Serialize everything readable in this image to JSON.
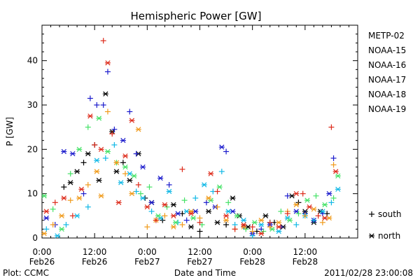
{
  "chart_data": {
    "type": "scatter",
    "title": "Hemispheric Power [GW]",
    "xlabel": "Date and Time",
    "ylabel": "P [GW]",
    "ylim": [
      0,
      48
    ],
    "xlim_hours": [
      0,
      72
    ],
    "yticks": [
      0,
      10,
      20,
      30,
      40
    ],
    "xticks": [
      {
        "hour": 0,
        "time": "0:00",
        "date": "Feb26"
      },
      {
        "hour": 12,
        "time": "12:00",
        "date": "Feb26"
      },
      {
        "hour": 24,
        "time": "0:00",
        "date": "Feb27"
      },
      {
        "hour": 36,
        "time": "12:00",
        "date": "Feb27"
      },
      {
        "hour": 48,
        "time": "0:00",
        "date": "Feb28"
      },
      {
        "hour": 60,
        "time": "12:00",
        "date": "Feb28"
      }
    ],
    "marker_legend": [
      {
        "symbol": "+",
        "label": "south"
      },
      {
        "symbol": "*",
        "label": "north"
      }
    ],
    "footer_left": "Plot: CCMC",
    "footer_right": "2011/02/28 23:00:08",
    "series": [
      {
        "name": "METP-02",
        "color": "#000000",
        "points": [
          [
            5,
            11.5,
            "+"
          ],
          [
            6.5,
            12.5,
            "*"
          ],
          [
            8,
            15,
            "*"
          ],
          [
            9.5,
            17,
            "+"
          ],
          [
            10.5,
            19,
            "*"
          ],
          [
            12,
            21,
            "+"
          ],
          [
            13,
            13,
            "*"
          ],
          [
            14.5,
            32.5,
            "*"
          ],
          [
            16,
            24,
            "*"
          ],
          [
            17,
            15,
            "*"
          ],
          [
            18.5,
            17,
            "+"
          ],
          [
            20,
            13,
            "*"
          ],
          [
            22,
            19,
            "*"
          ],
          [
            23.5,
            9,
            "+"
          ],
          [
            25,
            8,
            "*"
          ],
          [
            27.5,
            4,
            "+"
          ],
          [
            30,
            7.5,
            "*"
          ],
          [
            32,
            5.5,
            "+"
          ],
          [
            34,
            2.5,
            "*"
          ],
          [
            36,
            1.5,
            "+"
          ],
          [
            38,
            6,
            "*"
          ],
          [
            40,
            3.5,
            "*"
          ],
          [
            42,
            3,
            "+"
          ],
          [
            43.5,
            9,
            "*"
          ],
          [
            45,
            5,
            "*"
          ],
          [
            47,
            2.5,
            "*"
          ],
          [
            49,
            1.5,
            "+"
          ],
          [
            51,
            5,
            "*"
          ],
          [
            53,
            3.5,
            "+"
          ],
          [
            55,
            2.5,
            "*"
          ],
          [
            57,
            9.5,
            "*"
          ],
          [
            58.5,
            8,
            "+"
          ],
          [
            60,
            6,
            "*"
          ],
          [
            62,
            3.5,
            "*"
          ],
          [
            63.5,
            6,
            "*"
          ],
          [
            65,
            5.5,
            "+"
          ]
        ]
      },
      {
        "name": "NOAA-15",
        "color": "#1a1acc",
        "points": [
          [
            1,
            4.5,
            "*"
          ],
          [
            3,
            3,
            "+"
          ],
          [
            5,
            19.5,
            "*"
          ],
          [
            7,
            19,
            "*"
          ],
          [
            9.5,
            10,
            "+"
          ],
          [
            11,
            31.5,
            "+"
          ],
          [
            12.5,
            30,
            "+"
          ],
          [
            14,
            30,
            "+"
          ],
          [
            15,
            37.5,
            "+"
          ],
          [
            16.5,
            24.5,
            "+"
          ],
          [
            18.5,
            22,
            "*"
          ],
          [
            20,
            28.5,
            "+"
          ],
          [
            21.5,
            19,
            "+"
          ],
          [
            23,
            16,
            "*"
          ],
          [
            25,
            8,
            "*"
          ],
          [
            27,
            13.5,
            "*"
          ],
          [
            29,
            12,
            "+"
          ],
          [
            31,
            5.5,
            "*"
          ],
          [
            33,
            4,
            "+"
          ],
          [
            35,
            6,
            "*"
          ],
          [
            37.5,
            8,
            "+"
          ],
          [
            39.5,
            7,
            "*"
          ],
          [
            41,
            20.5,
            "*"
          ],
          [
            42,
            19.5,
            "+"
          ],
          [
            43.5,
            6,
            "*"
          ],
          [
            46,
            2.5,
            "+"
          ],
          [
            48,
            1,
            "*"
          ],
          [
            50,
            2,
            "+"
          ],
          [
            52,
            3,
            "*"
          ],
          [
            54.5,
            2.5,
            "+"
          ],
          [
            56,
            9.5,
            "+"
          ],
          [
            58,
            6,
            "*"
          ],
          [
            60,
            5.5,
            "+"
          ],
          [
            62,
            4,
            "*"
          ],
          [
            64,
            5.5,
            "+"
          ],
          [
            65.5,
            10,
            "*"
          ],
          [
            66.5,
            18,
            "+"
          ]
        ]
      },
      {
        "name": "NOAA-16",
        "color": "#10b8e6",
        "points": [
          [
            1,
            2,
            "+"
          ],
          [
            3.5,
            0.5,
            "*"
          ],
          [
            5.5,
            3,
            "+"
          ],
          [
            8,
            5,
            "*"
          ],
          [
            10.5,
            7,
            "+"
          ],
          [
            12.5,
            17.5,
            "*"
          ],
          [
            14.5,
            18,
            "+"
          ],
          [
            16.5,
            21,
            "+"
          ],
          [
            18,
            12.5,
            "*"
          ],
          [
            20,
            14.5,
            "*"
          ],
          [
            21.5,
            10.5,
            "+"
          ],
          [
            23,
            9,
            "*"
          ],
          [
            25,
            6,
            "+"
          ],
          [
            27,
            4.5,
            "*"
          ],
          [
            29,
            10.5,
            "*"
          ],
          [
            31,
            3.5,
            "+"
          ],
          [
            33,
            6,
            "*"
          ],
          [
            35,
            9,
            "+"
          ],
          [
            37,
            12,
            "*"
          ],
          [
            39,
            10.5,
            "+"
          ],
          [
            41,
            15,
            "+"
          ],
          [
            42.5,
            6,
            "*"
          ],
          [
            44,
            3,
            "+"
          ],
          [
            46,
            4,
            "*"
          ],
          [
            48,
            0.5,
            "+"
          ],
          [
            50,
            3,
            "*"
          ],
          [
            52,
            3.5,
            "+"
          ],
          [
            54,
            1.5,
            "*"
          ],
          [
            56,
            4.5,
            "*"
          ],
          [
            58,
            3,
            "+"
          ],
          [
            60,
            5,
            "*"
          ],
          [
            62,
            4,
            "+"
          ],
          [
            64,
            6,
            "*"
          ],
          [
            66,
            8,
            "+"
          ],
          [
            67.5,
            11,
            "*"
          ]
        ]
      },
      {
        "name": "NOAA-17",
        "color": "#44e266",
        "points": [
          [
            0.5,
            9.5,
            "*"
          ],
          [
            2.5,
            6.5,
            "+"
          ],
          [
            4.5,
            2,
            "*"
          ],
          [
            6.5,
            14.5,
            "+"
          ],
          [
            8.5,
            20,
            "*"
          ],
          [
            10.5,
            25,
            "+"
          ],
          [
            13,
            27,
            "*"
          ],
          [
            15,
            19.5,
            "*"
          ],
          [
            17,
            17,
            "+"
          ],
          [
            19,
            16,
            "*"
          ],
          [
            21,
            14,
            "*"
          ],
          [
            22.5,
            10,
            "+"
          ],
          [
            24.5,
            11.5,
            "+"
          ],
          [
            26.5,
            5,
            "*"
          ],
          [
            28.5,
            7,
            "+"
          ],
          [
            30.5,
            3.5,
            "*"
          ],
          [
            32.5,
            8.5,
            "+"
          ],
          [
            34.5,
            4.5,
            "*"
          ],
          [
            36.5,
            3,
            "+"
          ],
          [
            38.5,
            8.5,
            "*"
          ],
          [
            40.5,
            11.5,
            "*"
          ],
          [
            42.5,
            8,
            "+"
          ],
          [
            44.5,
            5,
            "*"
          ],
          [
            46.5,
            2,
            "+"
          ],
          [
            48.5,
            3.5,
            "*"
          ],
          [
            50.5,
            1.5,
            "+"
          ],
          [
            52.5,
            2,
            "*"
          ],
          [
            54.5,
            6,
            "+"
          ],
          [
            56.5,
            4,
            "*"
          ],
          [
            58.5,
            5.5,
            "+"
          ],
          [
            60.5,
            8.5,
            "*"
          ],
          [
            62.5,
            9.5,
            "+"
          ],
          [
            64.5,
            7.5,
            "*"
          ],
          [
            66.5,
            9,
            "+"
          ],
          [
            67.5,
            14,
            "*"
          ]
        ]
      },
      {
        "name": "NOAA-18",
        "color": "#f09a1a",
        "points": [
          [
            0.5,
            1,
            "*"
          ],
          [
            2.5,
            3,
            "+"
          ],
          [
            4.5,
            5,
            "*"
          ],
          [
            6.5,
            8.5,
            "+"
          ],
          [
            8.5,
            9,
            "*"
          ],
          [
            10.5,
            12,
            "+"
          ],
          [
            12.5,
            15,
            "*"
          ],
          [
            13.5,
            9.5,
            "*"
          ],
          [
            15,
            28.5,
            "+"
          ],
          [
            17,
            17,
            "*"
          ],
          [
            19,
            14.5,
            "+"
          ],
          [
            20.5,
            10,
            "*"
          ],
          [
            22,
            24.5,
            "*"
          ],
          [
            24,
            2.5,
            "+"
          ],
          [
            26,
            4,
            "*"
          ],
          [
            28,
            5,
            "+"
          ],
          [
            30,
            2.5,
            "*"
          ],
          [
            32,
            3,
            "+"
          ],
          [
            34,
            6,
            "*"
          ],
          [
            36,
            4.5,
            "+"
          ],
          [
            38,
            9,
            "*"
          ],
          [
            40,
            7,
            "+"
          ],
          [
            42,
            4,
            "*"
          ],
          [
            44,
            2,
            "+"
          ],
          [
            46,
            2.5,
            "*"
          ],
          [
            48,
            1.5,
            "+"
          ],
          [
            50,
            4,
            "*"
          ],
          [
            52,
            2.5,
            "+"
          ],
          [
            54,
            3.5,
            "*"
          ],
          [
            56,
            6,
            "+"
          ],
          [
            58,
            7.5,
            "*"
          ],
          [
            60,
            5,
            "+"
          ],
          [
            62,
            6.5,
            "*"
          ],
          [
            64,
            3.5,
            "+"
          ],
          [
            65.5,
            4.5,
            "*"
          ],
          [
            66.5,
            16.5,
            "+"
          ]
        ]
      },
      {
        "name": "NOAA-19",
        "color": "#dd2a1a",
        "points": [
          [
            1,
            6,
            "*"
          ],
          [
            3,
            8,
            "+"
          ],
          [
            5,
            9,
            "*"
          ],
          [
            7,
            5,
            "+"
          ],
          [
            9,
            11,
            "*"
          ],
          [
            11,
            27.5,
            "*"
          ],
          [
            12,
            21,
            "+"
          ],
          [
            13.5,
            20,
            "*"
          ],
          [
            14,
            44.5,
            "+"
          ],
          [
            15,
            39.5,
            "*"
          ],
          [
            16,
            23.5,
            "+"
          ],
          [
            17.5,
            8,
            "*"
          ],
          [
            19,
            18.5,
            "*"
          ],
          [
            20.5,
            26.5,
            "*"
          ],
          [
            22,
            12,
            "+"
          ],
          [
            24,
            7,
            "*"
          ],
          [
            26,
            4,
            "+"
          ],
          [
            28,
            7.5,
            "*"
          ],
          [
            30,
            5,
            "*"
          ],
          [
            32,
            15.5,
            "+"
          ],
          [
            34,
            5.5,
            "*"
          ],
          [
            36,
            3.5,
            "+"
          ],
          [
            38.5,
            14.5,
            "*"
          ],
          [
            40,
            10.5,
            "+"
          ],
          [
            42,
            5,
            "*"
          ],
          [
            44,
            2,
            "+"
          ],
          [
            46,
            3,
            "*"
          ],
          [
            48,
            2.5,
            "+"
          ],
          [
            50,
            1,
            "*"
          ],
          [
            52,
            3.5,
            "+"
          ],
          [
            54,
            2.5,
            "*"
          ],
          [
            56,
            5.5,
            "+"
          ],
          [
            58,
            10,
            "*"
          ],
          [
            59.5,
            10,
            "+"
          ],
          [
            61,
            7,
            "*"
          ],
          [
            63,
            5,
            "+"
          ],
          [
            64.5,
            4.5,
            "*"
          ],
          [
            66,
            25,
            "+"
          ],
          [
            67,
            15,
            "*"
          ]
        ]
      }
    ]
  }
}
